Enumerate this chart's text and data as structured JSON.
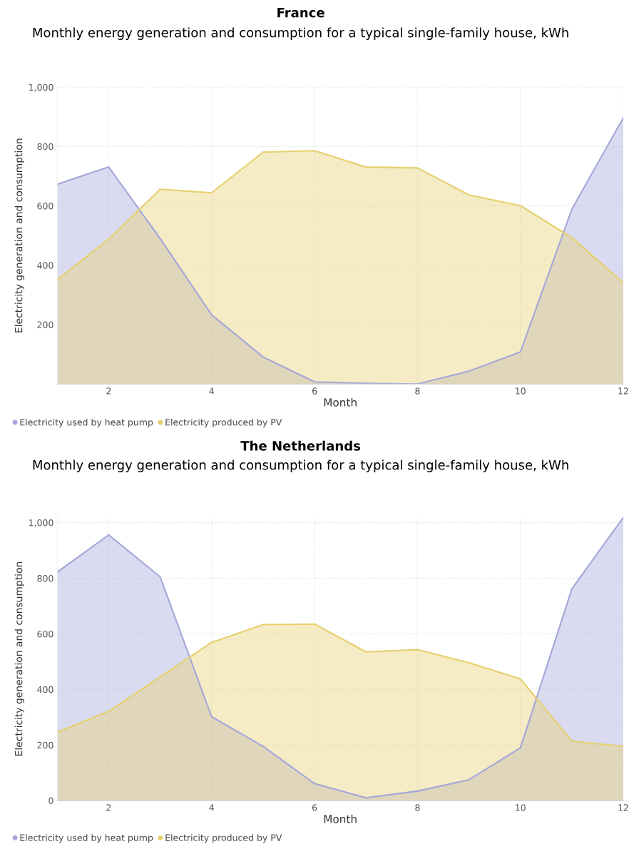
{
  "chart_data": [
    {
      "type": "area",
      "title": "France",
      "subtitle": "Monthly energy generation and consumption for a typical single-family house, kWh",
      "xlabel": "Month",
      "ylabel": "Electricity generation and consumption",
      "x": [
        1,
        2,
        3,
        4,
        5,
        6,
        7,
        8,
        9,
        10,
        11,
        12
      ],
      "xlim": [
        1,
        12
      ],
      "xticks": [
        2,
        4,
        6,
        8,
        10,
        12
      ],
      "ylim": [
        0,
        1000
      ],
      "yticks": [
        200,
        400,
        600,
        800,
        {
          "value": 1000,
          "label": "1,000"
        }
      ],
      "grid": true,
      "legend": "bottom left",
      "series": [
        {
          "name": "Electricity used by heat pump",
          "color": "#a3a6d9",
          "values": [
            673,
            731,
            490,
            233,
            91,
            7,
            2,
            0,
            43,
            108,
            589,
            897
          ]
        },
        {
          "name": "Electricity produced by PV",
          "color": "#e6cf6e",
          "values": [
            351,
            488,
            656,
            644,
            781,
            786,
            731,
            728,
            637,
            601,
            493,
            341
          ]
        }
      ]
    },
    {
      "type": "area",
      "title": "The Netherlands",
      "subtitle": "Monthly energy generation and consumption for a typical single-family house, kWh",
      "xlabel": "Month",
      "ylabel": "Electricity generation and consumption",
      "x": [
        1,
        2,
        3,
        4,
        5,
        6,
        7,
        8,
        9,
        10,
        11,
        12
      ],
      "xlim": [
        1,
        12
      ],
      "xticks": [
        2,
        4,
        6,
        8,
        10,
        12
      ],
      "ylim": [
        0,
        1020
      ],
      "yticks": [
        0,
        200,
        400,
        600,
        800,
        {
          "value": 1000,
          "label": "1,000"
        }
      ],
      "grid": true,
      "legend": "bottom left",
      "series": [
        {
          "name": "Electricity used by heat pump",
          "color": "#a3a6d9",
          "values": [
            822,
            956,
            805,
            302,
            195,
            61,
            10,
            34,
            75,
            190,
            762,
            1019
          ]
        },
        {
          "name": "Electricity produced by PV",
          "color": "#e6cf6e",
          "values": [
            246,
            321,
            445,
            569,
            633,
            635,
            535,
            543,
            496,
            438,
            214,
            195
          ]
        }
      ]
    }
  ]
}
